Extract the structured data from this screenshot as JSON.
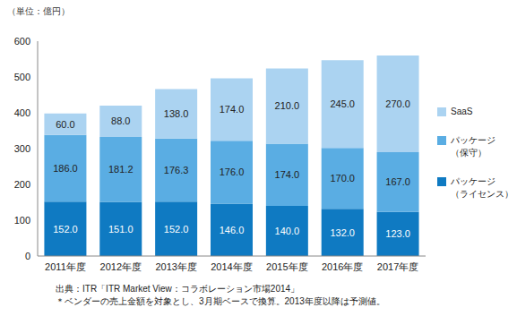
{
  "chart_data": {
    "type": "bar",
    "stacked": true,
    "data_labels": true,
    "grid": false,
    "legend": "right",
    "y_label": "（単位：億円）",
    "annotations": [
      "出典：ITR「ITR Market View：コラボレーション市場2014」",
      "＊ベンダーの売上金額を対象とし、3月期ベースで換算。2013年度以降は予測値。"
    ],
    "categories": [
      "2011年度",
      "2012年度",
      "2013年度",
      "2014年度",
      "2015年度",
      "2016年度",
      "2017年度"
    ],
    "ylim": [
      0,
      600
    ],
    "yticks": [
      0,
      100,
      200,
      300,
      400,
      500,
      600
    ],
    "series": [
      {
        "name": "パッケージ（ライセンス）",
        "color": "#0f7ac2",
        "values": [
          152,
          151,
          152,
          146,
          140,
          132,
          123
        ],
        "value_labels": [
          "152.0",
          "151.0",
          "152.0",
          "146.0",
          "140.0",
          "132.0",
          "123.0"
        ]
      },
      {
        "name": "パッケージ（保守）",
        "color": "#5aade3",
        "values": [
          186,
          181.2,
          176.3,
          176,
          174,
          170,
          167
        ],
        "value_labels": [
          "186.0",
          "181.2",
          "176.3",
          "176.0",
          "174.0",
          "170.0",
          "167.0"
        ]
      },
      {
        "name": "SaaS",
        "color": "#abd3f1",
        "values": [
          60,
          88,
          138,
          174,
          210,
          245,
          270
        ],
        "value_labels": [
          "60.0",
          "88.0",
          "138.0",
          "174.0",
          "210.0",
          "245.0",
          "270.0"
        ]
      }
    ]
  }
}
